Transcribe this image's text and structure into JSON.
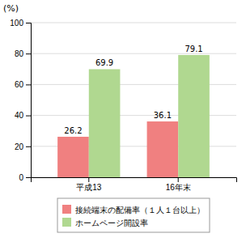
{
  "chart_data": {
    "type": "bar",
    "categories": [
      "平成13",
      "16年末"
    ],
    "series": [
      {
        "name": "接続端末の配備率（１人１台以上）",
        "color": "#f08080",
        "values": [
          26.2,
          36.1
        ]
      },
      {
        "name": "ホームページ開設率",
        "color": "#b0d890",
        "values": [
          69.9,
          79.1
        ]
      }
    ],
    "ylabel": "(%)",
    "ylim": [
      0,
      100
    ],
    "yticks": [
      0,
      20,
      40,
      60,
      80,
      100
    ],
    "grid": true,
    "data_labels": true,
    "legend": "bottom"
  }
}
